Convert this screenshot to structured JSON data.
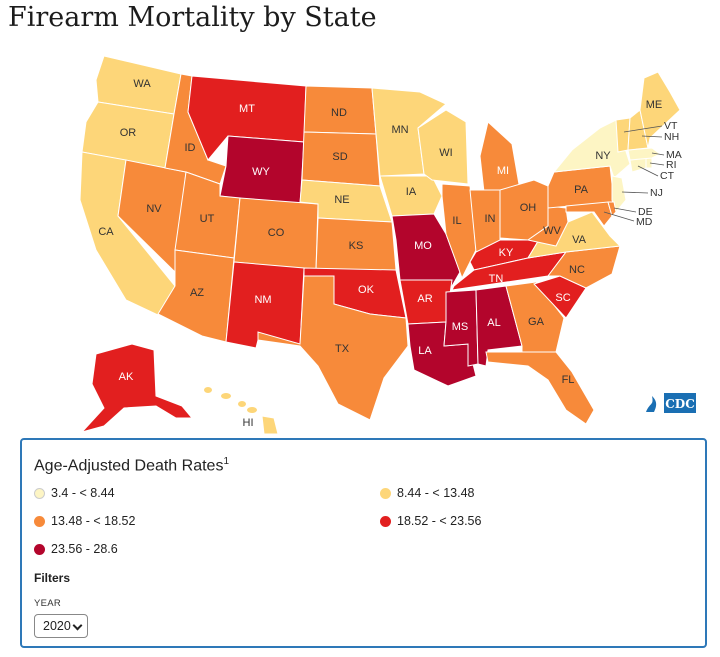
{
  "title": "Firearm Mortality by State",
  "colors": {
    "c1": "#fdf5c4",
    "c2": "#fdd679",
    "c3": "#f78a3a",
    "c4": "#e21f1f",
    "c5": "#b3052c"
  },
  "legend": {
    "title": "Age-Adjusted Death Rates",
    "footnote": "1",
    "items": [
      {
        "label": "3.4 - < 8.44"
      },
      {
        "label": "8.44 - < 13.48"
      },
      {
        "label": "13.48 - < 18.52"
      },
      {
        "label": "18.52 - < 23.56"
      },
      {
        "label": "23.56 - 28.6"
      }
    ]
  },
  "filters": {
    "heading": "Filters",
    "year_label": "YEAR",
    "year_value": "2020"
  },
  "logo": {
    "text": "CDC"
  },
  "states": {
    "WA": {
      "label": "WA",
      "cls": "c2"
    },
    "OR": {
      "label": "OR",
      "cls": "c2"
    },
    "CA": {
      "label": "CA",
      "cls": "c2"
    },
    "NV": {
      "label": "NV",
      "cls": "c3"
    },
    "ID": {
      "label": "ID",
      "cls": "c3"
    },
    "MT": {
      "label": "MT",
      "cls": "c4"
    },
    "WY": {
      "label": "WY",
      "cls": "c5"
    },
    "UT": {
      "label": "UT",
      "cls": "c3"
    },
    "AZ": {
      "label": "AZ",
      "cls": "c3"
    },
    "CO": {
      "label": "CO",
      "cls": "c3"
    },
    "NM": {
      "label": "NM",
      "cls": "c4"
    },
    "ND": {
      "label": "ND",
      "cls": "c3"
    },
    "SD": {
      "label": "SD",
      "cls": "c3"
    },
    "NE": {
      "label": "NE",
      "cls": "c2"
    },
    "KS": {
      "label": "KS",
      "cls": "c3"
    },
    "OK": {
      "label": "OK",
      "cls": "c4"
    },
    "TX": {
      "label": "TX",
      "cls": "c3"
    },
    "MN": {
      "label": "MN",
      "cls": "c2"
    },
    "IA": {
      "label": "IA",
      "cls": "c2"
    },
    "MO": {
      "label": "MO",
      "cls": "c5"
    },
    "AR": {
      "label": "AR",
      "cls": "c4"
    },
    "LA": {
      "label": "LA",
      "cls": "c5"
    },
    "WI": {
      "label": "WI",
      "cls": "c2"
    },
    "IL": {
      "label": "IL",
      "cls": "c3"
    },
    "MI": {
      "label": "MI",
      "cls": "c3"
    },
    "IN": {
      "label": "IN",
      "cls": "c3"
    },
    "OH": {
      "label": "OH",
      "cls": "c3"
    },
    "KY": {
      "label": "KY",
      "cls": "c4"
    },
    "TN": {
      "label": "TN",
      "cls": "c4"
    },
    "MS": {
      "label": "MS",
      "cls": "c5"
    },
    "AL": {
      "label": "AL",
      "cls": "c5"
    },
    "GA": {
      "label": "GA",
      "cls": "c3"
    },
    "FL": {
      "label": "FL",
      "cls": "c3"
    },
    "SC": {
      "label": "SC",
      "cls": "c4"
    },
    "NC": {
      "label": "NC",
      "cls": "c3"
    },
    "VA": {
      "label": "VA",
      "cls": "c2"
    },
    "WV": {
      "label": "WV",
      "cls": "c3"
    },
    "PA": {
      "label": "PA",
      "cls": "c3"
    },
    "NY": {
      "label": "NY",
      "cls": "c1"
    },
    "NJ": {
      "label": "NJ",
      "cls": "c1"
    },
    "DE": {
      "label": "DE",
      "cls": "c3"
    },
    "MD": {
      "label": "MD",
      "cls": "c3"
    },
    "CT": {
      "label": "CT",
      "cls": "c1"
    },
    "RI": {
      "label": "RI",
      "cls": "c1"
    },
    "MA": {
      "label": "MA",
      "cls": "c1"
    },
    "VT": {
      "label": "VT",
      "cls": "c2"
    },
    "NH": {
      "label": "NH",
      "cls": "c2"
    },
    "ME": {
      "label": "ME",
      "cls": "c2"
    },
    "AK": {
      "label": "AK",
      "cls": "c4"
    },
    "HI": {
      "label": "HI",
      "cls": "c2"
    }
  }
}
